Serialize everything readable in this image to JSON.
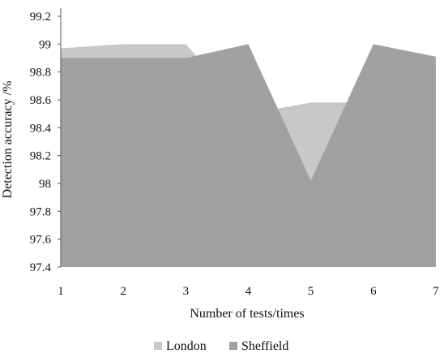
{
  "chart_data": {
    "type": "area",
    "xlabel": "Number of tests/times",
    "ylabel": "Detection accuracy /%",
    "x": [
      1,
      2,
      3,
      4,
      5,
      6,
      7
    ],
    "x_tick_labels": [
      "1",
      "2",
      "3",
      "4",
      "5",
      "6",
      "7"
    ],
    "ylim": [
      97.4,
      99.2
    ],
    "y_ticks": [
      97.4,
      97.6,
      97.8,
      98,
      98.2,
      98.4,
      98.6,
      98.8,
      99,
      99.2
    ],
    "y_tick_labels": [
      "97.4",
      "97.6",
      "97.8",
      "98",
      "98.2",
      "98.4",
      "98.6",
      "98.8",
      "99",
      "99.2"
    ],
    "series": [
      {
        "name": "London",
        "color": "#c8c8ca",
        "values": [
          98.97,
          99.0,
          99.0,
          98.5,
          98.58,
          98.58,
          98.58
        ]
      },
      {
        "name": "Sheffield",
        "color": "#a2a0a3",
        "values": [
          98.9,
          98.9,
          98.9,
          99.0,
          98.02,
          99.0,
          98.91
        ]
      }
    ],
    "grid": false,
    "legend_position": "bottom"
  }
}
